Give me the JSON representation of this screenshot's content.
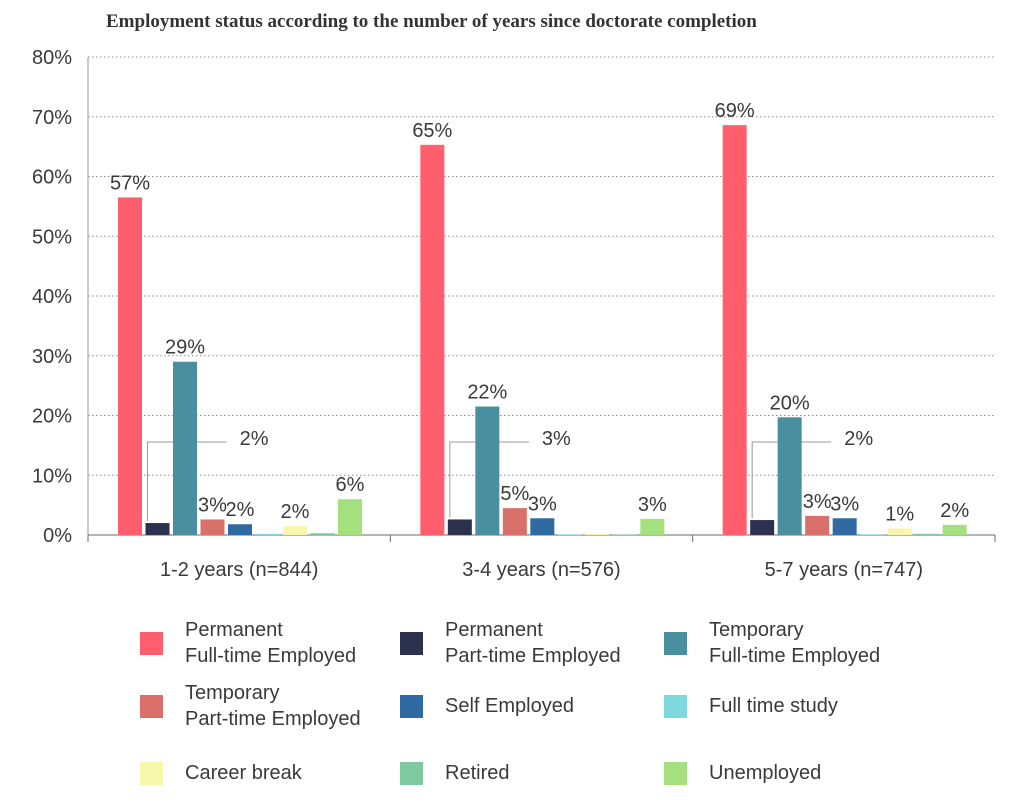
{
  "chart_data": {
    "type": "bar",
    "title": "Employment status according to the number of years since doctorate completion",
    "ylim": [
      0,
      80
    ],
    "yticks": [
      0,
      10,
      20,
      30,
      40,
      50,
      60,
      70,
      80
    ],
    "ytick_labels": [
      "0%",
      "10%",
      "20%",
      "30%",
      "40%",
      "50%",
      "60%",
      "70%",
      "80%"
    ],
    "grid": true,
    "legend_position": "bottom",
    "categories": [
      "1-2 years (n=844)",
      "3-4 years (n=576)",
      "5-7 years (n=747)"
    ],
    "series": [
      {
        "name": "Permanent Full-time Employed",
        "legend_lines": [
          "Permanent",
          "Full-time Employed"
        ],
        "color": "#ff5f6d",
        "values": [
          56.5,
          65.3,
          68.6
        ],
        "labels": [
          "57%",
          "65%",
          "69%"
        ]
      },
      {
        "name": "Permanent Part-time Employed",
        "legend_lines": [
          "Permanent",
          "Part-time Employed"
        ],
        "color": "#2c3150",
        "values": [
          2.0,
          2.6,
          2.5
        ],
        "labels": [
          "2%",
          "3%",
          "2%"
        ]
      },
      {
        "name": "Temporary Full-time Employed",
        "legend_lines": [
          "Temporary",
          "Full-time Employed"
        ],
        "color": "#4a8fa0",
        "values": [
          29.0,
          21.5,
          19.7
        ],
        "labels": [
          "29%",
          "22%",
          "20%"
        ]
      },
      {
        "name": "Temporary Part-time Employed",
        "legend_lines": [
          "Temporary",
          "Part-time Employed"
        ],
        "color": "#d9706a",
        "values": [
          2.6,
          4.5,
          3.2
        ],
        "labels": [
          "3%",
          "5%",
          "3%"
        ]
      },
      {
        "name": "Self Employed",
        "legend_lines": [
          "Self Employed"
        ],
        "color": "#2f6aa3",
        "values": [
          1.8,
          2.8,
          2.8
        ],
        "labels": [
          "2%",
          "3%",
          "3%"
        ]
      },
      {
        "name": "Full time study",
        "legend_lines": [
          "Full time study"
        ],
        "color": "#7fd8dd",
        "values": [
          0.2,
          0.1,
          0.1
        ],
        "labels": [
          "",
          "",
          ""
        ]
      },
      {
        "name": "Career break",
        "legend_lines": [
          "Career break"
        ],
        "color": "#f6f7ad",
        "values": [
          1.5,
          0.2,
          1.1
        ],
        "labels": [
          "2%",
          "",
          "1%"
        ]
      },
      {
        "name": "Retired",
        "legend_lines": [
          "Retired"
        ],
        "color": "#7fc99f",
        "values": [
          0.3,
          0.1,
          0.2
        ],
        "labels": [
          "",
          "",
          ""
        ]
      },
      {
        "name": "Unemployed",
        "legend_lines": [
          "Unemployed"
        ],
        "color": "#a5e07e",
        "values": [
          6.0,
          2.7,
          1.7
        ],
        "labels": [
          "6%",
          "3%",
          "2%"
        ]
      }
    ]
  }
}
